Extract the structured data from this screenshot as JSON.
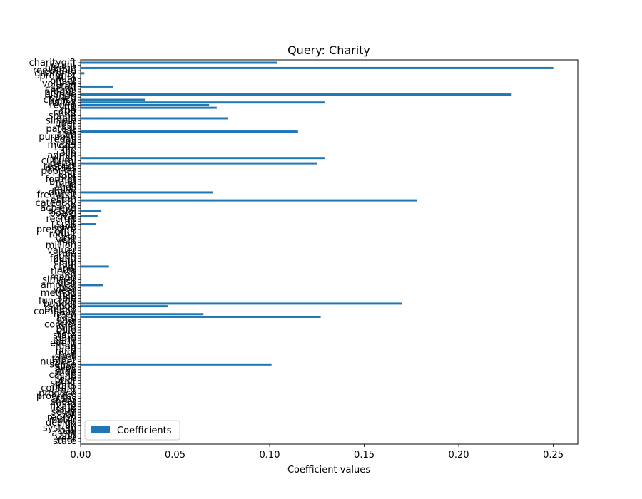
{
  "chart_data": {
    "type": "bar",
    "orientation": "horizontal",
    "title": "Query: Charity",
    "xlabel": "Coefficient values",
    "ylabel": "",
    "xlim": [
      0,
      0.263
    ],
    "xticks": [
      "0.00",
      "0.05",
      "0.10",
      "0.15",
      "0.20",
      "0.25"
    ],
    "xtick_values": [
      0,
      0.05,
      0.1,
      0.15,
      0.2,
      0.25
    ],
    "legend": {
      "label": "Coefficients",
      "position": "lower-left"
    },
    "bar_color": "#1f77b4",
    "categories": [
      "charitygift",
      "grant",
      "pledge",
      "reexamin",
      "guaranty",
      "propriet",
      "auto",
      "offset",
      "volume",
      "staff",
      "capital",
      "produc",
      "plunge",
      "guard",
      "chancy",
      "hailey",
      "regim",
      "tilt",
      "coo",
      "snuff",
      "shape",
      "gain",
      "simple",
      "uber",
      "cut",
      "patent",
      "sis",
      "aoin",
      "purpose",
      "regall",
      "ha",
      "model",
      "1992",
      "file",
      "allo",
      "admin",
      "vinan",
      "cultural",
      "detail",
      "restrict",
      "modes",
      "popular",
      "unit",
      "roof",
      "format",
      "brand",
      "fund",
      "ands",
      "raise",
      "dozen",
      "frequent",
      "plan",
      "estim",
      "category",
      "on",
      "achieve",
      "actual",
      "board",
      "oval",
      "recruit",
      "tie",
      "spot",
      "leave",
      "pressure",
      "offer",
      "requir",
      "case",
      "year",
      "min",
      "million",
      "l",
      "valuer",
      "rule",
      "agen",
      "found",
      "elem",
      "uni",
      "chun",
      "anic",
      "ticket",
      "fed",
      "mean",
      "simalar",
      "also",
      "amount",
      "tool",
      "weer",
      "method",
      "rice",
      "sale",
      "function",
      "budget",
      "suppo",
      "project",
      "company",
      "reco",
      "rate",
      "gnal",
      "cost",
      "control",
      "rolin",
      "mile",
      "vary",
      "state",
      "dam",
      "early",
      "event",
      "fund",
      "eq",
      "note",
      "plut",
      "shell",
      "tapar",
      "number",
      "sense",
      "alloc",
      "area",
      "wide",
      "cache",
      "ape",
      "prior",
      "spent",
      "nurts",
      "content",
      "order",
      "produce",
      "progress",
      "trans",
      "sheet",
      "mind",
      "fixate",
      "issue",
      "seller",
      "poll",
      "region",
      "opter",
      "design",
      "fix",
      "system",
      "ball",
      "asset",
      "add",
      "year",
      "state"
    ],
    "values": [
      0.104,
      0,
      0.25,
      0,
      0.002,
      0,
      0,
      0,
      0,
      0.017,
      0,
      0,
      0.228,
      0,
      0.034,
      0.129,
      0.068,
      0.072,
      0,
      0,
      0,
      0.078,
      0,
      0,
      0,
      0,
      0.115,
      0,
      0,
      0,
      0,
      0,
      0,
      0,
      0,
      0,
      0.129,
      0,
      0.125,
      0,
      0,
      0,
      0,
      0,
      0,
      0,
      0,
      0,
      0,
      0.07,
      0,
      0,
      0.178,
      0,
      0,
      0,
      0.011,
      0,
      0.009,
      0,
      0,
      0.008,
      0,
      0,
      0,
      0,
      0,
      0,
      0,
      0,
      0,
      0,
      0,
      0,
      0,
      0,
      0,
      0.015,
      0,
      0,
      0,
      0,
      0,
      0,
      0.012,
      0,
      0,
      0,
      0,
      0,
      0,
      0.17,
      0.046,
      0,
      0,
      0.065,
      0.127,
      0,
      0,
      0,
      0,
      0,
      0,
      0,
      0,
      0,
      0,
      0,
      0,
      0,
      0,
      0,
      0,
      0,
      0.101,
      0,
      0,
      0,
      0,
      0,
      0,
      0,
      0,
      0,
      0,
      0,
      0,
      0,
      0,
      0,
      0,
      0,
      0,
      0,
      0,
      0,
      0,
      0,
      0,
      0,
      0,
      0,
      0,
      0
    ]
  }
}
